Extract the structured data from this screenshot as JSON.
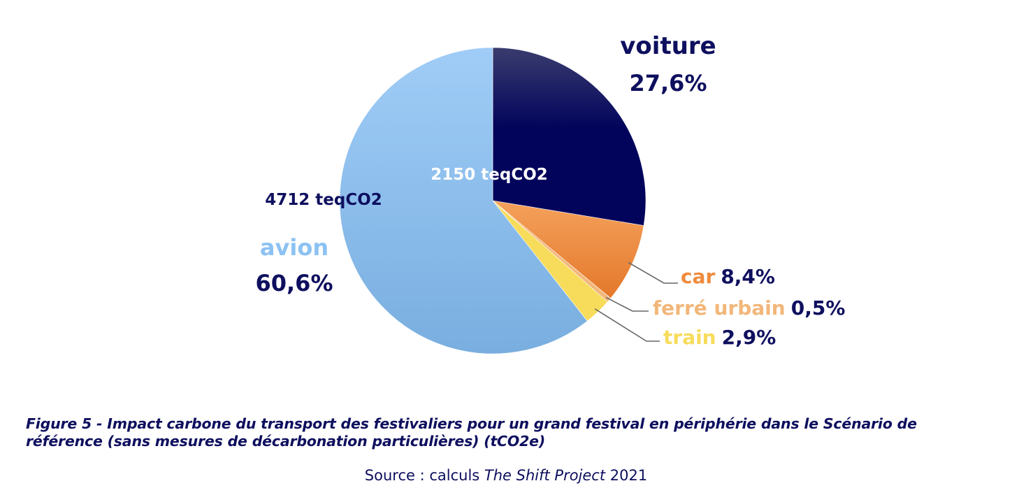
{
  "chart_data": {
    "type": "pie",
    "slices": [
      {
        "label": "voiture",
        "pct": "27,6%",
        "value": 27.6,
        "color": "#02045c"
      },
      {
        "label": "car",
        "pct": "8,4%",
        "value": 8.4,
        "color": "#ef8b3c"
      },
      {
        "label": "ferré urbain",
        "pct": "0,5%",
        "value": 0.5,
        "color": "#f2b77a"
      },
      {
        "label": "train",
        "pct": "2,9%",
        "value": 2.9,
        "color": "#f7dc5c"
      },
      {
        "label": "avion",
        "pct": "60,6%",
        "value": 60.6,
        "color": "#8cc2f2"
      }
    ],
    "annotations": {
      "inside": "2150 teqCO2",
      "outside": "4712 teqCO2"
    },
    "label_colors": {
      "value_text": "#0e0f5e",
      "car": "#ef8b3c",
      "ferre": "#f2b77a",
      "train": "#f7dc5c",
      "avion": "#8cc2f2",
      "leader": "#666666"
    }
  },
  "caption": {
    "line1": "Figure 5 - Impact carbone du transport des festivaliers pour un grand festival en périphérie dans le Scénario de",
    "line2": "référence (sans mesures de décarbonation particulières) (tCO2e)"
  },
  "source": {
    "prefix": "Source : calculs ",
    "italic": "The Shift Project",
    "suffix": " 2021"
  }
}
